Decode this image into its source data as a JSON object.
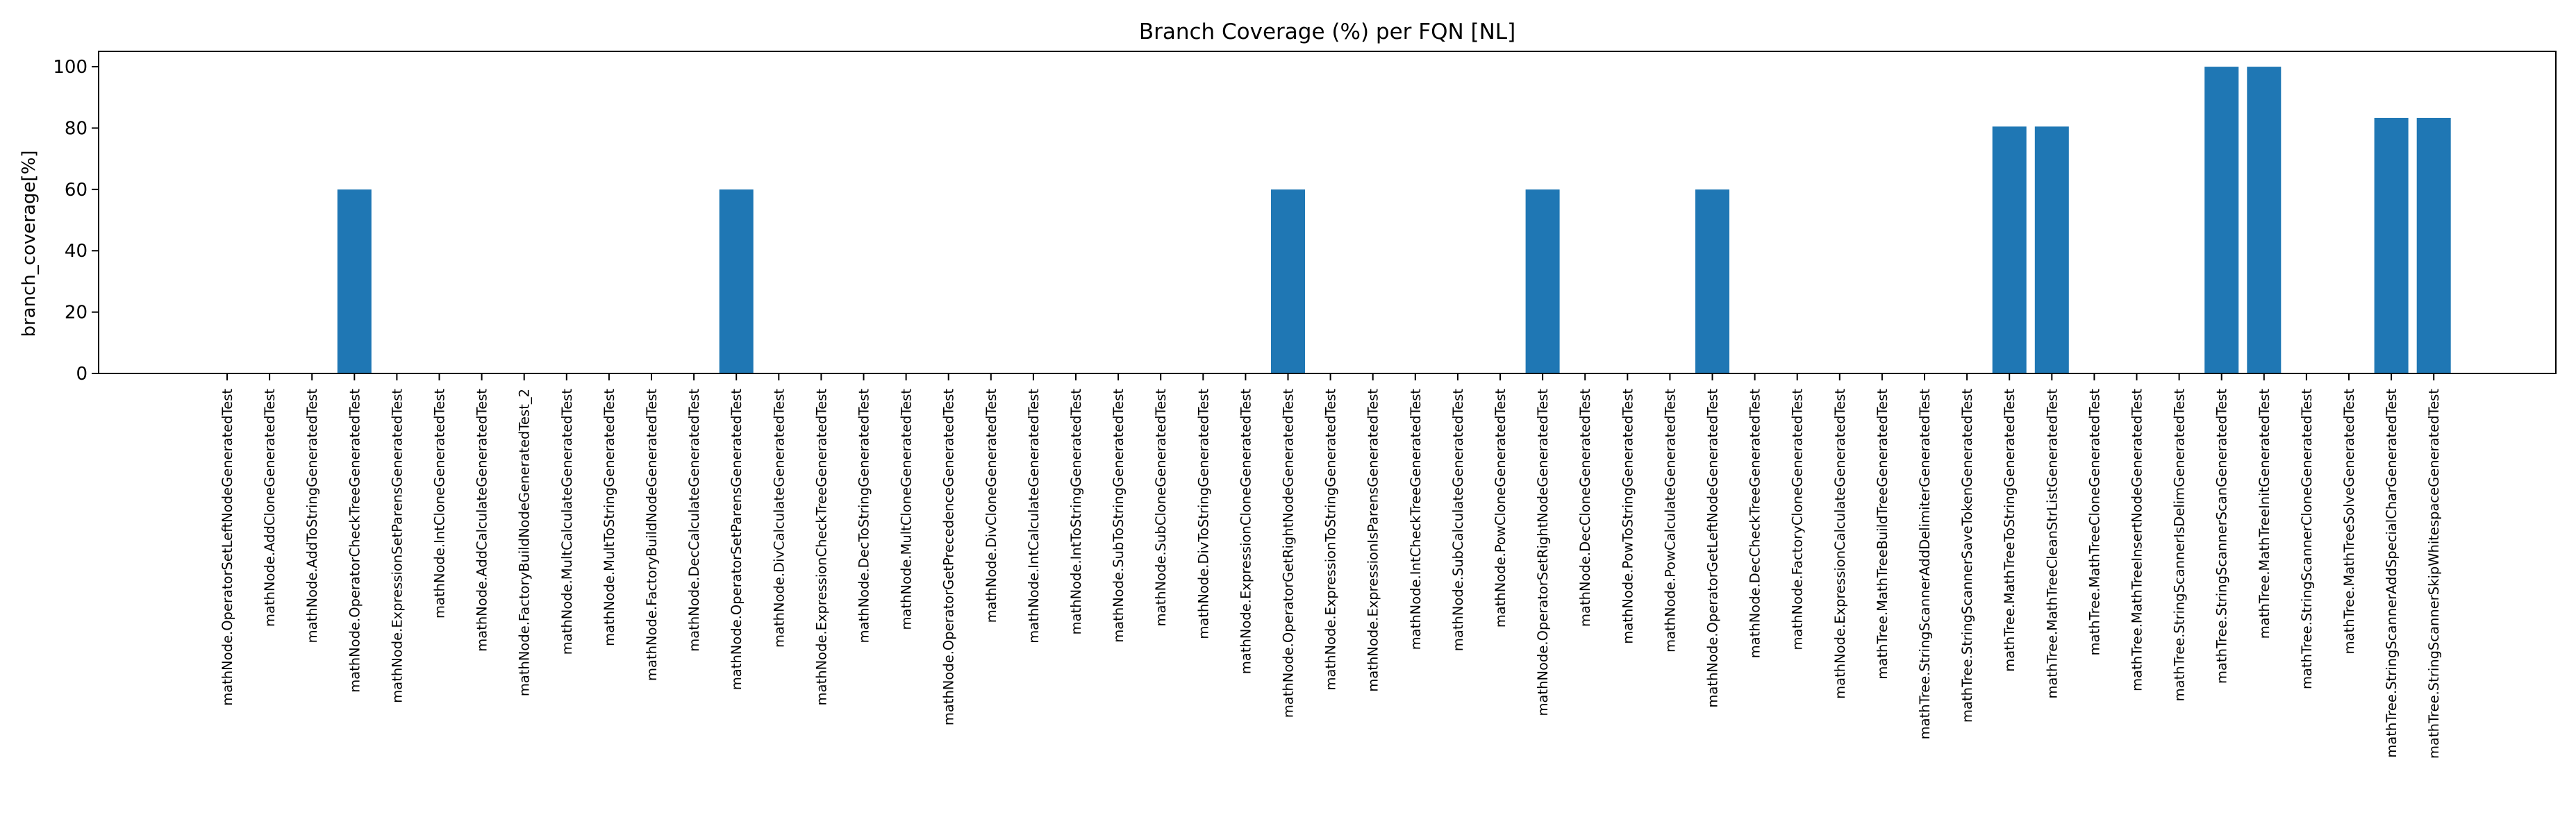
{
  "chart_data": {
    "type": "bar",
    "title": "Branch Coverage (%) per FQN [NL]",
    "xlabel": "",
    "ylabel": "branch_coverage[%]",
    "ylim": [
      0,
      105
    ],
    "yticks": [
      0,
      20,
      40,
      60,
      80,
      100
    ],
    "grid": false,
    "bar_color": "#1f77b4",
    "categories": [
      "mathNode.OperatorSetLeftNodeGeneratedTest",
      "mathNode.AddCloneGeneratedTest",
      "mathNode.AddToStringGeneratedTest",
      "mathNode.OperatorCheckTreeGeneratedTest",
      "mathNode.ExpressionSetParensGeneratedTest",
      "mathNode.IntCloneGeneratedTest",
      "mathNode.AddCalculateGeneratedTest",
      "mathNode.FactoryBuildNodeGeneratedTest_2",
      "mathNode.MultCalculateGeneratedTest",
      "mathNode.MultToStringGeneratedTest",
      "mathNode.FactoryBuildNodeGeneratedTest",
      "mathNode.DecCalculateGeneratedTest",
      "mathNode.OperatorSetParensGeneratedTest",
      "mathNode.DivCalculateGeneratedTest",
      "mathNode.ExpressionCheckTreeGeneratedTest",
      "mathNode.DecToStringGeneratedTest",
      "mathNode.MultCloneGeneratedTest",
      "mathNode.OperatorGetPrecedenceGeneratedTest",
      "mathNode.DivCloneGeneratedTest",
      "mathNode.IntCalculateGeneratedTest",
      "mathNode.IntToStringGeneratedTest",
      "mathNode.SubToStringGeneratedTest",
      "mathNode.SubCloneGeneratedTest",
      "mathNode.DivToStringGeneratedTest",
      "mathNode.ExpressionCloneGeneratedTest",
      "mathNode.OperatorGetRightNodeGeneratedTest",
      "mathNode.ExpressionToStringGeneratedTest",
      "mathNode.ExpressionIsParensGeneratedTest",
      "mathNode.IntCheckTreeGeneratedTest",
      "mathNode.SubCalculateGeneratedTest",
      "mathNode.PowCloneGeneratedTest",
      "mathNode.OperatorSetRightNodeGeneratedTest",
      "mathNode.DecCloneGeneratedTest",
      "mathNode.PowToStringGeneratedTest",
      "mathNode.PowCalculateGeneratedTest",
      "mathNode.OperatorGetLeftNodeGeneratedTest",
      "mathNode.DecCheckTreeGeneratedTest",
      "mathNode.FactoryCloneGeneratedTest",
      "mathNode.ExpressionCalculateGeneratedTest",
      "mathTree.MathTreeBuildTreeGeneratedTest",
      "mathTree.StringScannerAddDelimiterGeneratedTest",
      "mathTree.StringScannerSaveTokenGeneratedTest",
      "mathTree.MathTreeToStringGeneratedTest",
      "mathTree.MathTreeCleanStrListGeneratedTest",
      "mathTree.MathTreeCloneGeneratedTest",
      "mathTree.MathTreeInsertNodeGeneratedTest",
      "mathTree.StringScannerIsDelimGeneratedTest",
      "mathTree.StringScannerScanGeneratedTest",
      "mathTree.MathTreeInitGeneratedTest",
      "mathTree.StringScannerCloneGeneratedTest",
      "mathTree.MathTreeSolveGeneratedTest",
      "mathTree.StringScannerAddSpecialCharGeneratedTest",
      "mathTree.StringScannerSkipWhitespaceGeneratedTest"
    ],
    "values": [
      0,
      0,
      0,
      60,
      0,
      0,
      0,
      0,
      0,
      0,
      0,
      0,
      60,
      0,
      0,
      0,
      0,
      0,
      0,
      0,
      0,
      0,
      0,
      0,
      0,
      60,
      0,
      0,
      0,
      0,
      0,
      60,
      0,
      0,
      0,
      60,
      0,
      0,
      0,
      0,
      0,
      0,
      80.5,
      80.5,
      0,
      0,
      0,
      100,
      100,
      0,
      0,
      83.3,
      83.3
    ]
  }
}
